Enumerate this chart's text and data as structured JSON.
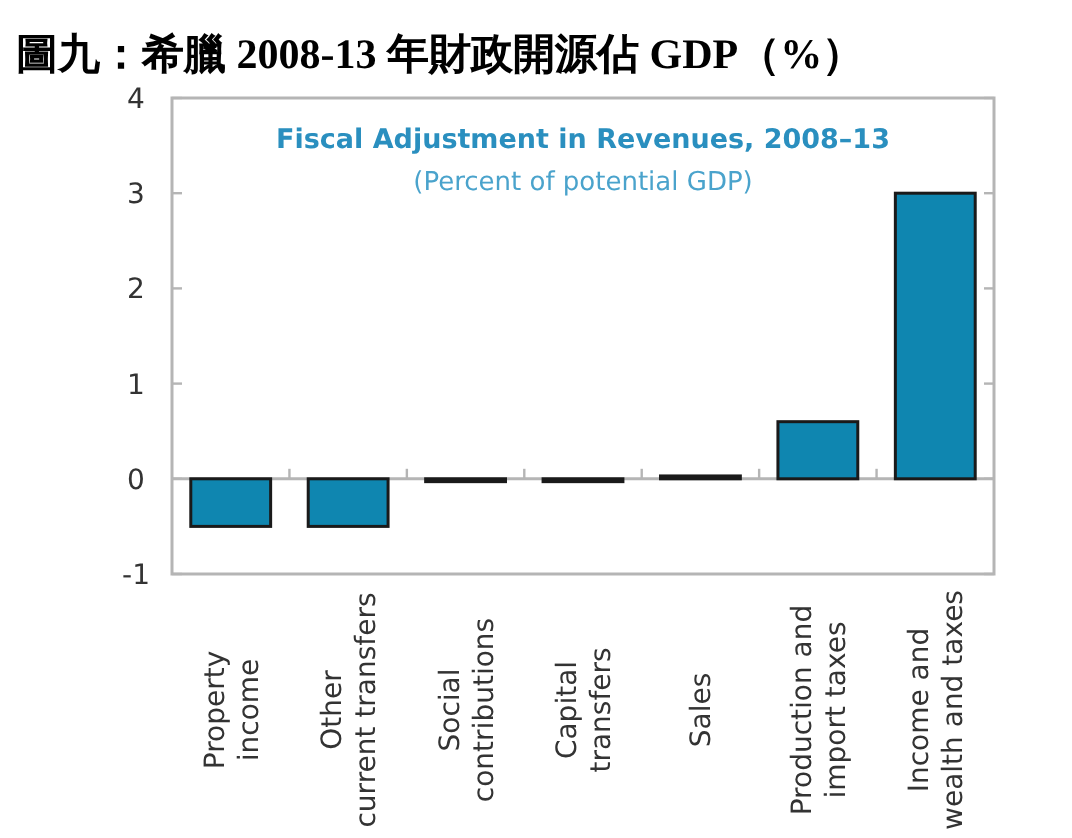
{
  "chart_data": {
    "type": "bar",
    "title": "圖九：希臘 2008-13 年財政開源佔 GDP（%）",
    "subtitle": "Fiscal Adjustment in Revenues, 2008–13",
    "annotations": [
      "(Percent of potential GDP)"
    ],
    "categories": [
      "Property\nincome",
      "Other\ncurrent transfers",
      "Social\ncontributions",
      "Capital\ntransfers",
      "Sales",
      "Production and\nimport taxes",
      "Income and\nwealth and taxes"
    ],
    "values": [
      -0.5,
      -0.5,
      -0.03,
      -0.03,
      0.03,
      0.6,
      3.0
    ],
    "color": "#0f86b0",
    "ylim": [
      -1,
      4
    ],
    "yticks": [
      -1,
      0,
      1,
      2,
      3,
      4
    ]
  }
}
